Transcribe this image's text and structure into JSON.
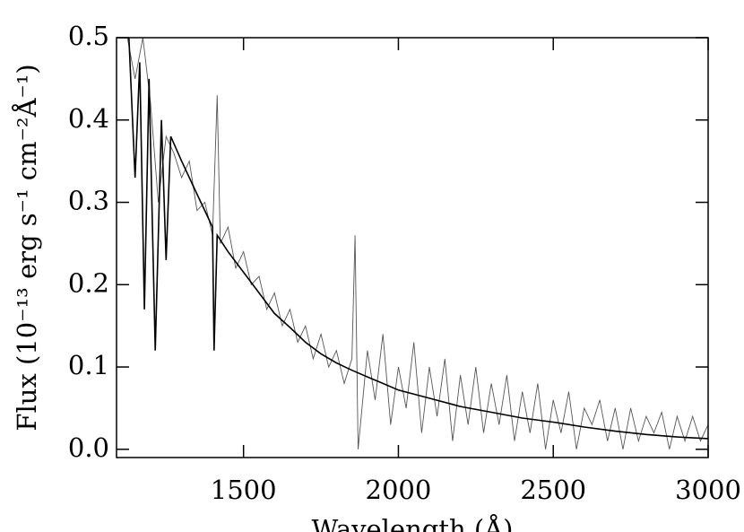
{
  "chart_data": {
    "type": "line",
    "xlabel": "Wavelength (Å)",
    "ylabel": "Flux (10⁻¹³ erg s⁻¹ cm⁻²Å⁻¹)",
    "xlim": [
      1090,
      3000
    ],
    "ylim": [
      -0.01,
      0.5
    ],
    "xticks": [
      1500,
      2000,
      2500,
      3000
    ],
    "yticks": [
      {
        "value": 0,
        "label": "0.0"
      },
      0.1,
      0.2,
      0.3,
      0.4,
      0.5
    ],
    "series": [
      {
        "color": "#555555",
        "x": [
          1125,
          1150,
          1175,
          1200,
          1225,
          1250,
          1275,
          1300,
          1325,
          1350,
          1375,
          1400,
          1415,
          1425,
          1450,
          1475,
          1500,
          1525,
          1550,
          1575,
          1600,
          1625,
          1650,
          1675,
          1700,
          1725,
          1750,
          1775,
          1800,
          1825,
          1850,
          1860,
          1870,
          1900,
          1925,
          1950,
          1975,
          2000,
          2025,
          2050,
          2075,
          2100,
          2125,
          2150,
          2175,
          2200,
          2225,
          2250,
          2275,
          2300,
          2325,
          2350,
          2375,
          2400,
          2425,
          2450,
          2475,
          2500,
          2525,
          2550,
          2575,
          2600,
          2625,
          2650,
          2675,
          2700,
          2725,
          2750,
          2775,
          2800,
          2825,
          2850,
          2875,
          2900,
          2925,
          2950,
          2975,
          3000
        ],
        "values": [
          0.5,
          0.45,
          0.5,
          0.42,
          0.3,
          0.38,
          0.36,
          0.33,
          0.35,
          0.29,
          0.3,
          0.26,
          0.43,
          0.25,
          0.27,
          0.22,
          0.24,
          0.2,
          0.21,
          0.17,
          0.19,
          0.15,
          0.17,
          0.13,
          0.15,
          0.11,
          0.14,
          0.1,
          0.12,
          0.08,
          0.11,
          0.26,
          0.0,
          0.12,
          0.06,
          0.14,
          0.03,
          0.1,
          0.05,
          0.13,
          0.02,
          0.1,
          0.04,
          0.11,
          0.01,
          0.09,
          0.03,
          0.1,
          0.02,
          0.08,
          0.03,
          0.09,
          0.01,
          0.07,
          0.02,
          0.08,
          0.0,
          0.06,
          0.02,
          0.07,
          0.0,
          0.05,
          0.03,
          0.06,
          0.01,
          0.05,
          0.0,
          0.05,
          0.01,
          0.04,
          0.02,
          0.045,
          0.0,
          0.04,
          0.01,
          0.04,
          0.01,
          0.03
        ]
      },
      {
        "color": "#000000",
        "x": [
          1130,
          1150,
          1165,
          1180,
          1195,
          1215,
          1235,
          1250,
          1265,
          1300,
          1350,
          1400,
          1405,
          1415,
          1450,
          1500,
          1550,
          1600,
          1650,
          1700,
          1750,
          1800,
          1850,
          1900,
          1950,
          2000,
          2100,
          2200,
          2300,
          2400,
          2500,
          2600,
          2700,
          2800,
          2900,
          3000
        ],
        "values": [
          0.5,
          0.33,
          0.47,
          0.17,
          0.45,
          0.12,
          0.4,
          0.23,
          0.38,
          0.35,
          0.31,
          0.27,
          0.12,
          0.26,
          0.24,
          0.215,
          0.19,
          0.165,
          0.148,
          0.13,
          0.116,
          0.105,
          0.096,
          0.088,
          0.08,
          0.072,
          0.062,
          0.052,
          0.045,
          0.038,
          0.033,
          0.027,
          0.022,
          0.018,
          0.015,
          0.013
        ]
      }
    ]
  }
}
